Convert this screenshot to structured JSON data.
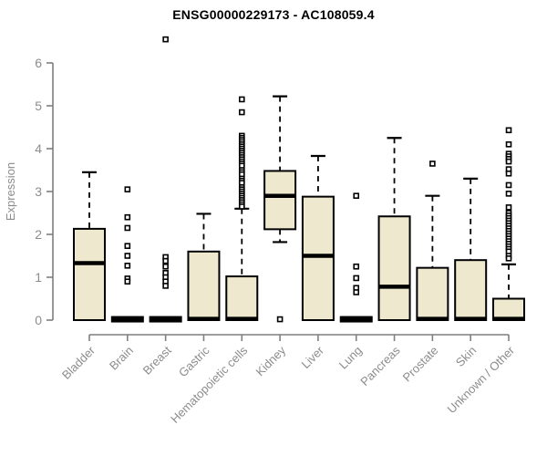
{
  "chart_data": {
    "type": "boxplot",
    "title": "ENSG00000229173 - AC108059.4",
    "xlabel": "",
    "ylabel": "Expression",
    "ylim": [
      0,
      6
    ],
    "yticks": [
      0,
      1,
      2,
      3,
      4,
      5,
      6
    ],
    "grid": false,
    "legend": "none",
    "categories": [
      "Bladder",
      "Brain",
      "Breast",
      "Gastric",
      "Hematopoietic cells",
      "Kidney",
      "Liver",
      "Lung",
      "Pancreas",
      "Prostate",
      "Skin",
      "Unknown / Other"
    ],
    "series": [
      {
        "name": "Bladder",
        "low": 0,
        "q1": 0,
        "median": 1.33,
        "q3": 2.13,
        "high": 3.45,
        "outliers": []
      },
      {
        "name": "Brain",
        "low": 0,
        "q1": 0,
        "median": 0.02,
        "q3": 0.04,
        "high": 0.04,
        "outliers": [
          3.05,
          2.4,
          2.15,
          1.73,
          1.5,
          1.27,
          0.97,
          0.9
        ]
      },
      {
        "name": "Breast",
        "low": 0,
        "q1": 0,
        "median": 0.02,
        "q3": 0.04,
        "high": 0.04,
        "outliers": [
          6.55,
          1.47,
          1.38,
          1.25,
          1.1,
          1.0,
          0.9,
          0.8
        ]
      },
      {
        "name": "Gastric",
        "low": 0,
        "q1": 0,
        "median": 0.03,
        "q3": 1.6,
        "high": 2.48,
        "outliers": []
      },
      {
        "name": "Hematopoietic cells",
        "low": 0,
        "q1": 0,
        "median": 0.03,
        "q3": 1.02,
        "high": 2.6,
        "outliers": [
          5.15,
          4.85,
          4.3,
          4.25,
          4.2,
          4.15,
          4.1,
          4.05,
          4.0,
          3.95,
          3.9,
          3.85,
          3.8,
          3.75,
          3.7,
          3.65,
          3.6,
          3.5,
          3.45,
          3.4,
          3.3,
          3.25,
          3.2,
          3.1,
          3.05,
          3.0,
          2.95,
          2.9,
          2.85,
          2.8,
          2.75,
          2.7,
          2.65
        ]
      },
      {
        "name": "Kidney",
        "low": 1.82,
        "q1": 2.12,
        "median": 2.9,
        "q3": 3.48,
        "high": 5.22,
        "outliers": [
          0.02
        ]
      },
      {
        "name": "Liver",
        "low": 0,
        "q1": 0,
        "median": 1.5,
        "q3": 2.88,
        "high": 3.83,
        "outliers": []
      },
      {
        "name": "Lung",
        "low": 0,
        "q1": 0,
        "median": 0.02,
        "q3": 0.04,
        "high": 0.04,
        "outliers": [
          2.9,
          1.25,
          0.98,
          0.75,
          0.65
        ]
      },
      {
        "name": "Pancreas",
        "low": 0,
        "q1": 0,
        "median": 0.78,
        "q3": 2.42,
        "high": 4.25,
        "outliers": []
      },
      {
        "name": "Prostate",
        "low": 0,
        "q1": 0,
        "median": 0.03,
        "q3": 1.22,
        "high": 2.9,
        "outliers": [
          3.65
        ]
      },
      {
        "name": "Skin",
        "low": 0,
        "q1": 0,
        "median": 0.03,
        "q3": 1.4,
        "high": 3.3,
        "outliers": []
      },
      {
        "name": "Unknown / Other",
        "low": 0,
        "q1": 0,
        "median": 0.03,
        "q3": 0.5,
        "high": 1.3,
        "outliers": [
          4.43,
          4.1,
          3.88,
          3.82,
          3.76,
          3.7,
          3.52,
          3.42,
          3.15,
          2.95,
          2.63,
          2.5,
          2.44,
          2.38,
          2.32,
          2.26,
          2.2,
          2.14,
          2.08,
          2.02,
          1.96,
          1.9,
          1.84,
          1.78,
          1.72,
          1.66,
          1.6,
          1.5,
          1.44
        ]
      }
    ],
    "colors": {
      "box_fill": "#EDE8CE",
      "box_stroke": "#000000",
      "median": "#000000",
      "whisker": "#000000",
      "outlier_stroke": "#000000",
      "outlier_fill": "#FFFFFF",
      "axis_line": "#7F7F7F",
      "axis_text": "#8C8C8C",
      "title_text": "#000000",
      "background": "#FFFFFF"
    }
  }
}
